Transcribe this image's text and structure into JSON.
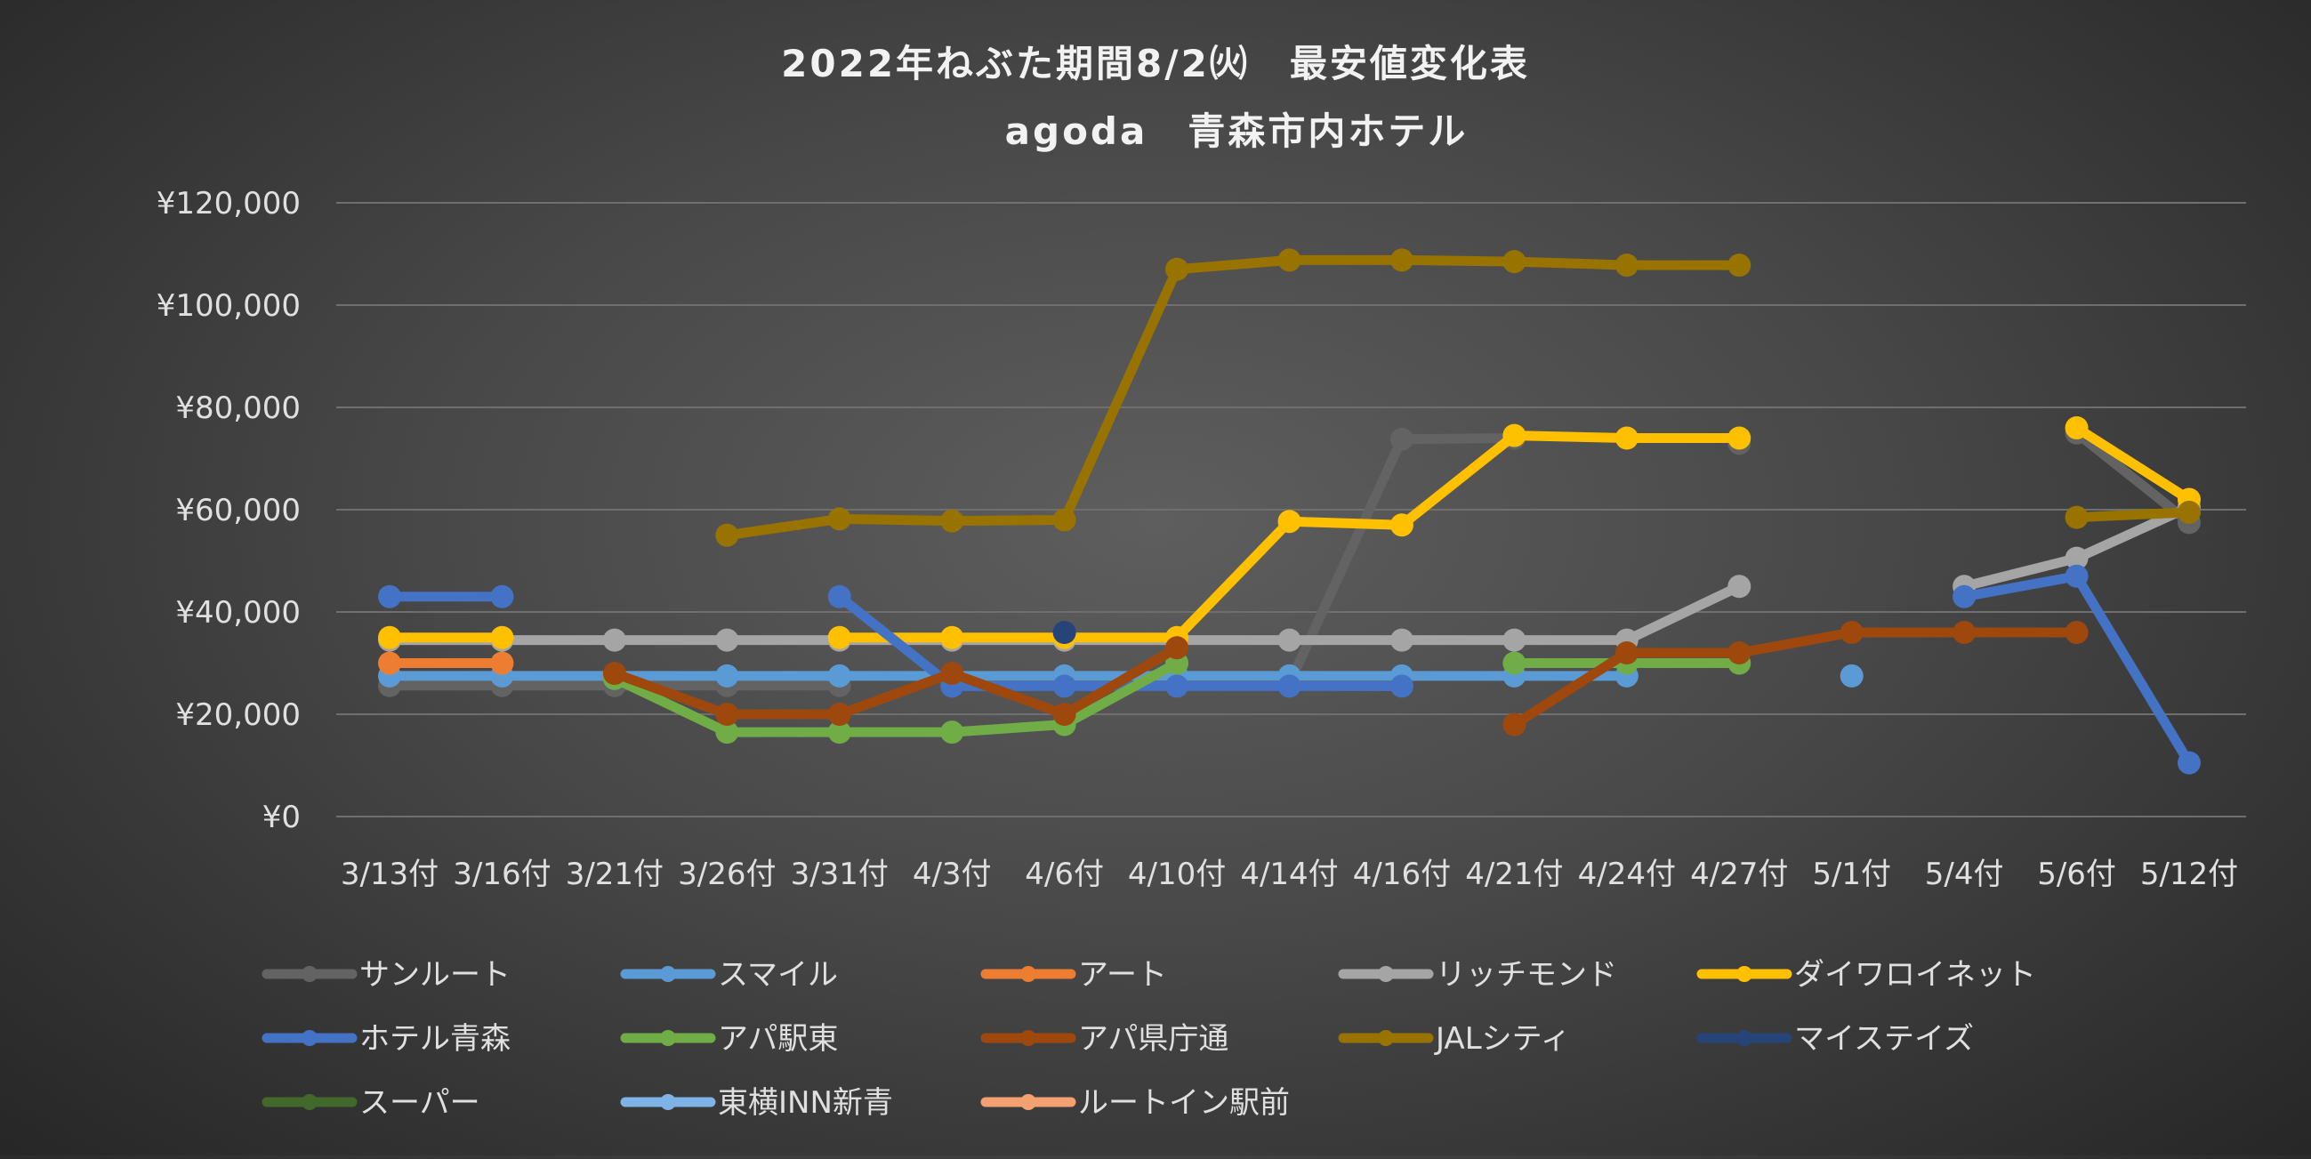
{
  "chart_data": {
    "type": "line",
    "title": "2022年ねぶた期間8/2㈫　最安値変化表",
    "subtitle": "agoda　青森市内ホテル",
    "xlabel": "",
    "ylabel": "",
    "categories": [
      "3/13付",
      "3/16付",
      "3/21付",
      "3/26付",
      "3/31付",
      "4/3付",
      "4/6付",
      "4/10付",
      "4/14付",
      "4/16付",
      "4/21付",
      "4/24付",
      "4/27付",
      "5/1付",
      "5/4付",
      "5/6付",
      "5/12付"
    ],
    "ylim": [
      0,
      120000
    ],
    "yticks": [
      {
        "value": 0,
        "label": "¥0"
      },
      {
        "value": 20000,
        "label": "¥20,000"
      },
      {
        "value": 40000,
        "label": "¥40,000"
      },
      {
        "value": 60000,
        "label": "¥60,000"
      },
      {
        "value": 80000,
        "label": "¥80,000"
      },
      {
        "value": 100000,
        "label": "¥100,000"
      },
      {
        "value": 120000,
        "label": "¥120,000"
      }
    ],
    "grid": true,
    "legend_position": "bottom",
    "series": [
      {
        "name": "サンルート",
        "color": "#636363",
        "values": [
          25600,
          25600,
          25600,
          25600,
          25600,
          null,
          null,
          null,
          26000,
          73800,
          74000,
          null,
          73000,
          null,
          null,
          75000,
          57500
        ]
      },
      {
        "name": "スマイル",
        "color": "#5b9bd5",
        "values": [
          27500,
          27500,
          27500,
          27500,
          27500,
          27500,
          27500,
          27500,
          27500,
          27500,
          27500,
          27500,
          null,
          27500,
          null,
          null,
          null
        ]
      },
      {
        "name": "アート",
        "color": "#ed7d31",
        "values": [
          30000,
          30000,
          null,
          null,
          null,
          null,
          null,
          null,
          null,
          null,
          null,
          null,
          null,
          null,
          null,
          null,
          null
        ]
      },
      {
        "name": "リッチモンド",
        "color": "#a5a5a5",
        "values": [
          34500,
          34500,
          34500,
          34500,
          34500,
          34500,
          34500,
          34500,
          34500,
          34500,
          34500,
          34500,
          45000,
          null,
          45000,
          50500,
          60500
        ]
      },
      {
        "name": "ダイワロイネット",
        "color": "#ffc000",
        "values": [
          35000,
          35000,
          null,
          null,
          35000,
          35000,
          35000,
          35000,
          57700,
          57000,
          74500,
          74000,
          74000,
          null,
          null,
          76000,
          62000
        ]
      },
      {
        "name": "ホテル青森",
        "color": "#4472c4",
        "values": [
          43000,
          43000,
          null,
          null,
          43000,
          25500,
          25500,
          25500,
          25500,
          25500,
          null,
          null,
          null,
          null,
          43000,
          47000,
          10500
        ]
      },
      {
        "name": "アパ駅東",
        "color": "#70ad47",
        "values": [
          null,
          null,
          27000,
          16500,
          16500,
          16500,
          18000,
          30000,
          null,
          null,
          30000,
          30000,
          30000,
          null,
          null,
          null,
          null
        ]
      },
      {
        "name": "アパ県庁通",
        "color": "#9e480e",
        "values": [
          null,
          null,
          28000,
          20000,
          20000,
          28000,
          20000,
          33000,
          null,
          null,
          18000,
          32000,
          32000,
          36000,
          36000,
          36000,
          null
        ]
      },
      {
        "name": "JALシティ",
        "color": "#997300",
        "values": [
          null,
          null,
          null,
          55000,
          58200,
          57800,
          58000,
          107000,
          108800,
          108800,
          108500,
          107800,
          107800,
          null,
          null,
          58500,
          59500
        ]
      },
      {
        "name": "マイステイズ",
        "color": "#264478",
        "values": [
          null,
          null,
          null,
          null,
          null,
          null,
          36000,
          null,
          null,
          null,
          null,
          null,
          null,
          null,
          null,
          null,
          null
        ]
      },
      {
        "name": "スーパー",
        "color": "#43682b",
        "values": [
          null,
          null,
          null,
          null,
          null,
          null,
          null,
          null,
          null,
          null,
          null,
          null,
          null,
          null,
          null,
          null,
          null
        ]
      },
      {
        "name": "東横INN新青",
        "color": "#7fb2e5",
        "values": [
          null,
          null,
          null,
          null,
          null,
          null,
          null,
          null,
          null,
          null,
          null,
          null,
          null,
          null,
          null,
          null,
          null
        ]
      },
      {
        "name": "ルートイン駅前",
        "color": "#f4a070",
        "values": [
          null,
          null,
          null,
          null,
          null,
          null,
          null,
          null,
          null,
          null,
          null,
          null,
          null,
          null,
          null,
          null,
          null
        ]
      }
    ]
  }
}
